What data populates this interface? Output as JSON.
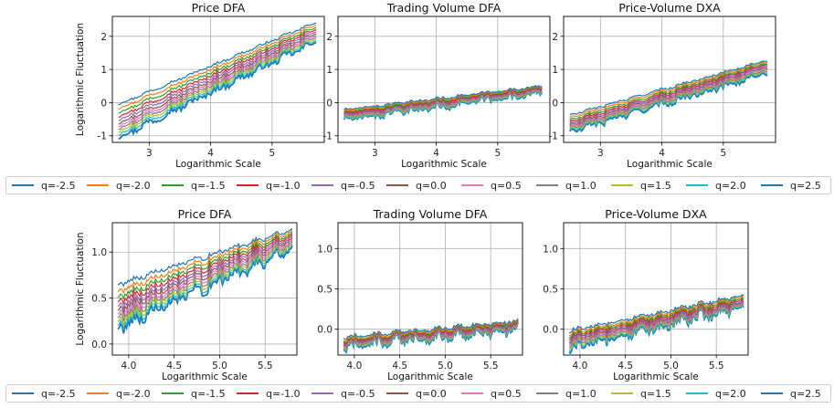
{
  "legend": [
    "q=-2.5",
    "q=-2.0",
    "q=-1.5",
    "q=-1.0",
    "q=-0.5",
    "q=0.0",
    "q=0.5",
    "q=1.0",
    "q=1.5",
    "q=2.0",
    "q=2.5"
  ],
  "colors": [
    "#1f77b4",
    "#ff7f0e",
    "#2ca02c",
    "#d62728",
    "#9467bd",
    "#8c564b",
    "#e377c2",
    "#7f7f7f",
    "#bcbd22",
    "#17becf",
    "#1f77b4"
  ],
  "chart_data": [
    {
      "type": "line",
      "title": "Price DFA",
      "xlabel": "Logarithmic Scale",
      "ylabel": "Logarithmic Fluctuation",
      "xlim": [
        2.4,
        5.85
      ],
      "ylim": [
        -1.2,
        2.6
      ],
      "xticks": [
        "3",
        "4",
        "5"
      ],
      "xtick_values": [
        3,
        4,
        5
      ],
      "yticks": [
        "-1",
        "0",
        "1",
        "2"
      ],
      "ytick_values": [
        -1,
        0,
        1,
        2
      ],
      "x_start": 2.5,
      "x_end": 5.72,
      "y_start_by_q": [
        -0.05,
        -0.18,
        -0.3,
        -0.42,
        -0.52,
        -0.62,
        -0.7,
        -0.78,
        -0.86,
        -0.95,
        -1.05
      ],
      "y_end_by_q": [
        2.42,
        2.35,
        2.28,
        2.22,
        2.16,
        2.1,
        2.05,
        2.0,
        1.95,
        1.9,
        1.85
      ],
      "grid": true
    },
    {
      "type": "line",
      "title": "Trading Volume DFA",
      "xlabel": "Logarithmic Scale",
      "ylabel": "",
      "xlim": [
        2.4,
        5.85
      ],
      "ylim": [
        -1.2,
        2.6
      ],
      "xticks": [
        "3",
        "4",
        "5"
      ],
      "xtick_values": [
        3,
        4,
        5
      ],
      "yticks": [
        "-1",
        "0",
        "1",
        "2"
      ],
      "ytick_values": [
        -1,
        0,
        1,
        2
      ],
      "x_start": 2.5,
      "x_end": 5.72,
      "y_start_by_q": [
        -0.22,
        -0.26,
        -0.29,
        -0.32,
        -0.35,
        -0.38,
        -0.41,
        -0.44,
        -0.47,
        -0.5,
        -0.52
      ],
      "y_end_by_q": [
        0.5,
        0.48,
        0.46,
        0.44,
        0.42,
        0.4,
        0.38,
        0.36,
        0.34,
        0.32,
        0.3
      ],
      "grid": true
    },
    {
      "type": "line",
      "title": "Price-Volume DXA",
      "xlabel": "Logarithmic Scale",
      "ylabel": "",
      "xlim": [
        2.4,
        5.85
      ],
      "ylim": [
        -1.2,
        2.6
      ],
      "xticks": [
        "3",
        "4",
        "5"
      ],
      "xtick_values": [
        3,
        4,
        5
      ],
      "yticks": [
        "-1",
        "0",
        "1",
        "2"
      ],
      "ytick_values": [
        -1,
        0,
        1,
        2
      ],
      "x_start": 2.5,
      "x_end": 5.72,
      "y_start_by_q": [
        -0.38,
        -0.45,
        -0.52,
        -0.58,
        -0.63,
        -0.68,
        -0.72,
        -0.76,
        -0.8,
        -0.84,
        -0.88
      ],
      "y_end_by_q": [
        1.28,
        1.24,
        1.2,
        1.16,
        1.12,
        1.08,
        1.04,
        1.0,
        0.97,
        0.94,
        0.9
      ],
      "grid": true
    },
    {
      "type": "line",
      "title": "Price DFA",
      "xlabel": "Logarithmic Scale",
      "ylabel": "Logarithmic Fluctuation",
      "xlim": [
        3.82,
        5.85
      ],
      "ylim": [
        -0.12,
        1.32
      ],
      "xticks": [
        "4.0",
        "4.5",
        "5.0",
        "5.5"
      ],
      "xtick_values": [
        4.0,
        4.5,
        5.0,
        5.5
      ],
      "yticks": [
        "0.0",
        "0.5",
        "1.0"
      ],
      "ytick_values": [
        0,
        0.5,
        1.0
      ],
      "x_start": 3.88,
      "x_end": 5.8,
      "y_start_by_q": [
        0.65,
        0.58,
        0.52,
        0.47,
        0.42,
        0.38,
        0.34,
        0.3,
        0.26,
        0.22,
        0.18
      ],
      "y_end_by_q": [
        1.25,
        1.23,
        1.21,
        1.19,
        1.17,
        1.15,
        1.13,
        1.11,
        1.09,
        1.07,
        1.05
      ],
      "grid": true
    },
    {
      "type": "line",
      "title": "Trading Volume DFA",
      "xlabel": "Logarithmic Scale",
      "ylabel": "",
      "xlim": [
        3.82,
        5.85
      ],
      "ylim": [
        -0.32,
        1.32
      ],
      "xticks": [
        "4.0",
        "4.5",
        "5.0",
        "5.5"
      ],
      "xtick_values": [
        4.0,
        4.5,
        5.0,
        5.5
      ],
      "yticks": [
        "0.0",
        "0.5",
        "1.0"
      ],
      "ytick_values": [
        0,
        0.5,
        1.0
      ],
      "x_start": 3.88,
      "x_end": 5.8,
      "y_start_by_q": [
        -0.1,
        -0.12,
        -0.13,
        -0.14,
        -0.15,
        -0.16,
        -0.17,
        -0.18,
        -0.19,
        -0.2,
        -0.21
      ],
      "y_end_by_q": [
        0.1,
        0.09,
        0.08,
        0.07,
        0.06,
        0.05,
        0.04,
        0.03,
        0.02,
        0.01,
        0.0
      ],
      "grid": true
    },
    {
      "type": "line",
      "title": "Price-Volume DXA",
      "xlabel": "Logarithmic Scale",
      "ylabel": "",
      "xlim": [
        3.82,
        5.85
      ],
      "ylim": [
        -0.32,
        1.32
      ],
      "xticks": [
        "4.0",
        "4.5",
        "5.0",
        "5.5"
      ],
      "xtick_values": [
        4.0,
        4.5,
        5.0,
        5.5
      ],
      "yticks": [
        "0.0",
        "0.5",
        "1.0"
      ],
      "ytick_values": [
        0,
        0.5,
        1.0
      ],
      "x_start": 3.88,
      "x_end": 5.8,
      "y_start_by_q": [
        -0.02,
        -0.05,
        -0.07,
        -0.09,
        -0.11,
        -0.13,
        -0.15,
        -0.17,
        -0.19,
        -0.21,
        -0.23
      ],
      "y_end_by_q": [
        0.42,
        0.4,
        0.38,
        0.36,
        0.34,
        0.33,
        0.32,
        0.31,
        0.3,
        0.29,
        0.28
      ],
      "grid": true
    }
  ]
}
